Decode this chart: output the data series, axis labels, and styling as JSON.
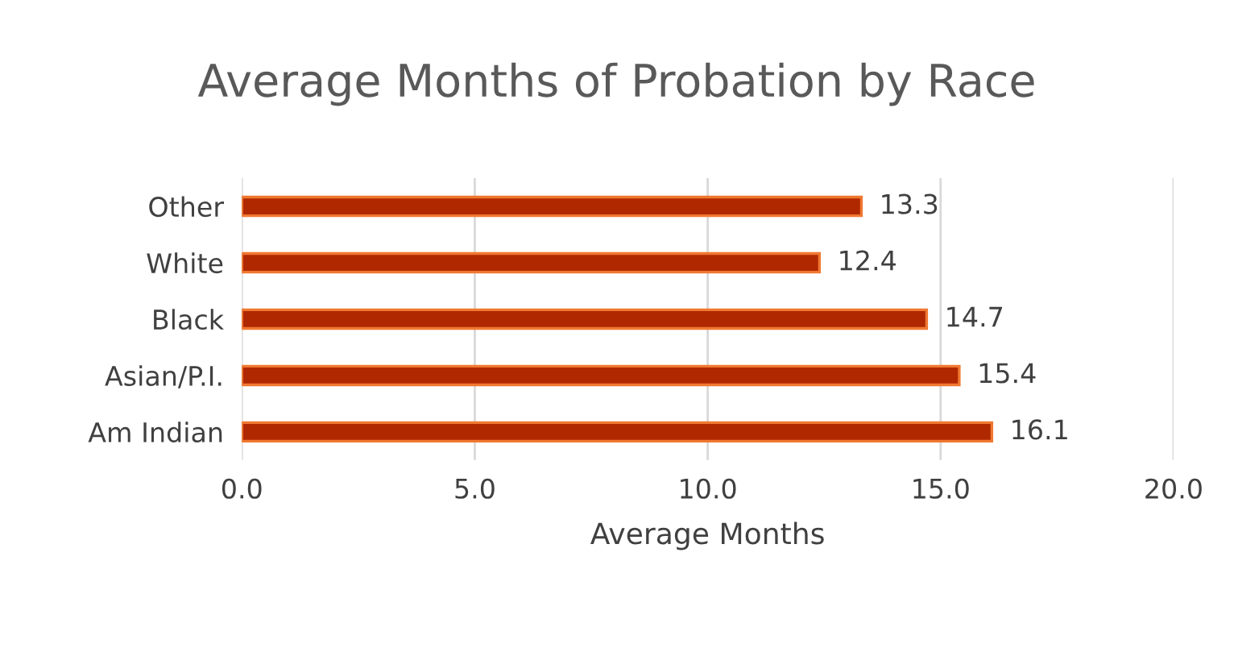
{
  "chart_data": {
    "type": "bar",
    "orientation": "horizontal",
    "title": "Average Months of Probation by Race",
    "xlabel": "Average Months",
    "categories": [
      "Other",
      "White",
      "Black",
      "Asian/P.I.",
      "Am Indian"
    ],
    "values": [
      13.3,
      12.4,
      14.7,
      15.4,
      16.1
    ],
    "color": "#b02800",
    "xlim": [
      0,
      20
    ],
    "xticks": [
      {
        "value": 0,
        "label": "0.0"
      },
      {
        "value": 5,
        "label": "5.0"
      },
      {
        "value": 10,
        "label": "10.0"
      },
      {
        "value": 15,
        "label": "15.0"
      },
      {
        "value": 20,
        "label": "20.0"
      }
    ],
    "grid": "x",
    "data_labels": true
  }
}
